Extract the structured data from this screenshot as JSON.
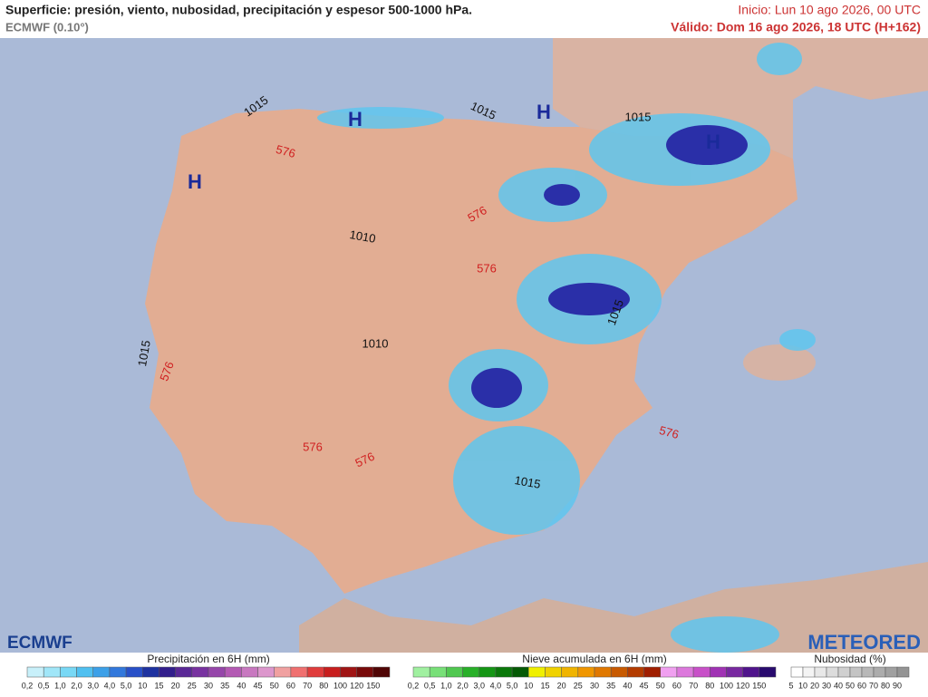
{
  "header": {
    "title": "Superficie: presión, viento, nubosidad, precipitación y espesor 500-1000 hPa.",
    "model": "ECMWF (0.10°)",
    "init": "Inicio: Lun 10 ago 2026, 00 UTC",
    "valid": "Válido: Dom 16 ago 2026, 18 UTC (H+162)"
  },
  "map": {
    "labels": [
      "H",
      "H",
      "H",
      "H",
      "1015",
      "1015",
      "1015",
      "1015",
      "1015",
      "1015",
      "1010",
      "1010",
      "576",
      "576",
      "576",
      "576",
      "576",
      "576",
      "576"
    ]
  },
  "logos": {
    "left": "ECMWF",
    "right": "METEORED"
  },
  "legends": [
    {
      "title": "Precipitación en 6H (mm)",
      "labels": [
        "0,2",
        "0,5",
        "1,0",
        "2,0",
        "3,0",
        "4,0",
        "5,0",
        "10",
        "15",
        "20",
        "25",
        "30",
        "35",
        "40",
        "45",
        "50",
        "60",
        "70",
        "80",
        "100",
        "120",
        "150"
      ],
      "colors": [
        "#c8f0fa",
        "#a0e6f8",
        "#78d8f5",
        "#50c0f0",
        "#3ca0e8",
        "#3278dc",
        "#2850c8",
        "#1e32a0",
        "#321e8c",
        "#5a2896",
        "#7832a0",
        "#9646aa",
        "#b45ab4",
        "#c878c0",
        "#dc96cc",
        "#f0a0a0",
        "#f07070",
        "#e03c3c",
        "#c81e1e",
        "#a01414",
        "#780a0a",
        "#500505"
      ]
    },
    {
      "title": "Nieve acumulada en 6H (mm)",
      "labels": [
        "0,2",
        "0,5",
        "1,0",
        "2,0",
        "3,0",
        "4,0",
        "5,0",
        "10",
        "15",
        "20",
        "25",
        "30",
        "35",
        "40",
        "45",
        "50",
        "60",
        "70",
        "80",
        "100",
        "120",
        "150"
      ],
      "colors": [
        "#a0f0a0",
        "#78e078",
        "#50c850",
        "#28b028",
        "#149614",
        "#0a780a",
        "#055a05",
        "#f0f000",
        "#f0d200",
        "#f0b400",
        "#f09600",
        "#e07800",
        "#c85a00",
        "#b43c00",
        "#a01e00",
        "#f0a0f0",
        "#dc78dc",
        "#c850c8",
        "#a032b4",
        "#7828a0",
        "#50148c",
        "#280a6e"
      ]
    },
    {
      "title": "Nubosidad (%)",
      "labels": [
        "5",
        "10",
        "20",
        "30",
        "40",
        "50",
        "60",
        "70",
        "80",
        "90"
      ],
      "colors": [
        "#ffffff",
        "#f4f4f4",
        "#e8e8e8",
        "#dcdcdc",
        "#d0d0d0",
        "#c4c4c4",
        "#b8b8b8",
        "#acacac",
        "#a0a0a0",
        "#949494"
      ]
    }
  ]
}
